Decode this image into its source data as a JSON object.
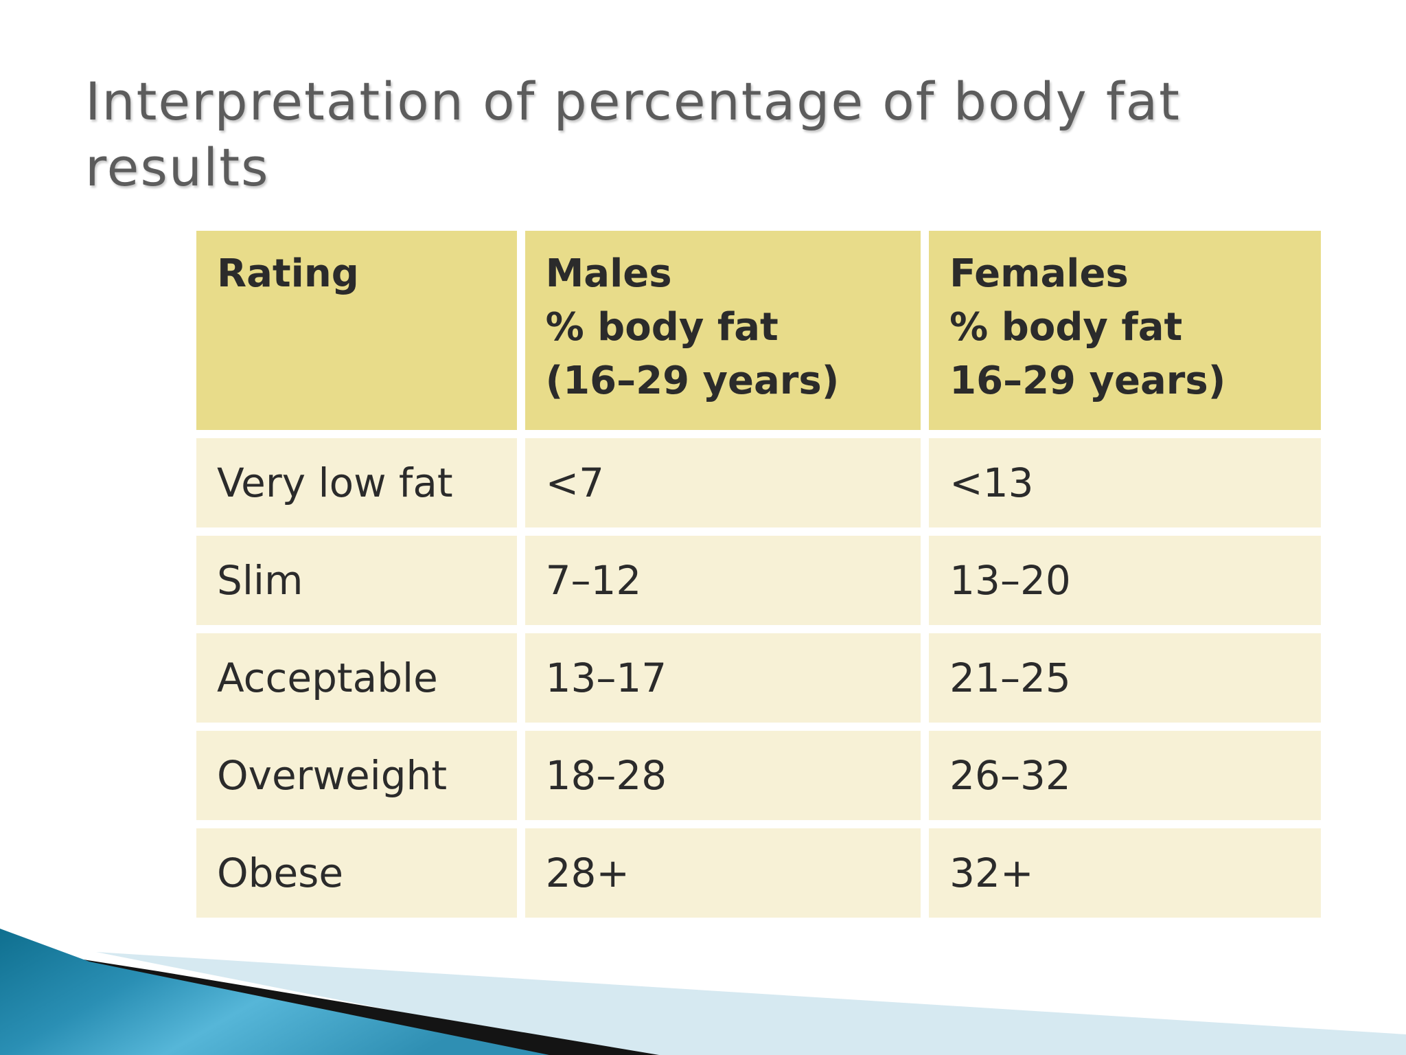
{
  "title": "Interpretation of percentage of body fat results",
  "table": {
    "headers": [
      {
        "lines": [
          "Rating"
        ]
      },
      {
        "lines": [
          "Males",
          "% body fat",
          "(16–29 years)"
        ]
      },
      {
        "lines": [
          "Females",
          "% body fat",
          "16–29 years)"
        ]
      }
    ],
    "rows": [
      [
        "Very low fat",
        "<7",
        "<13"
      ],
      [
        "Slim",
        "7–12",
        "13–20"
      ],
      [
        "Acceptable",
        "13–17",
        "21–25"
      ],
      [
        "Overweight",
        "18–28",
        "26–32"
      ],
      [
        "Obese",
        "28+",
        "32+"
      ]
    ]
  },
  "colors": {
    "header_fill": "#e8dc8a",
    "row_fill": "#f7f1d6",
    "title_text": "#5c5c5c",
    "accent_blue": "#2a8fb4"
  }
}
